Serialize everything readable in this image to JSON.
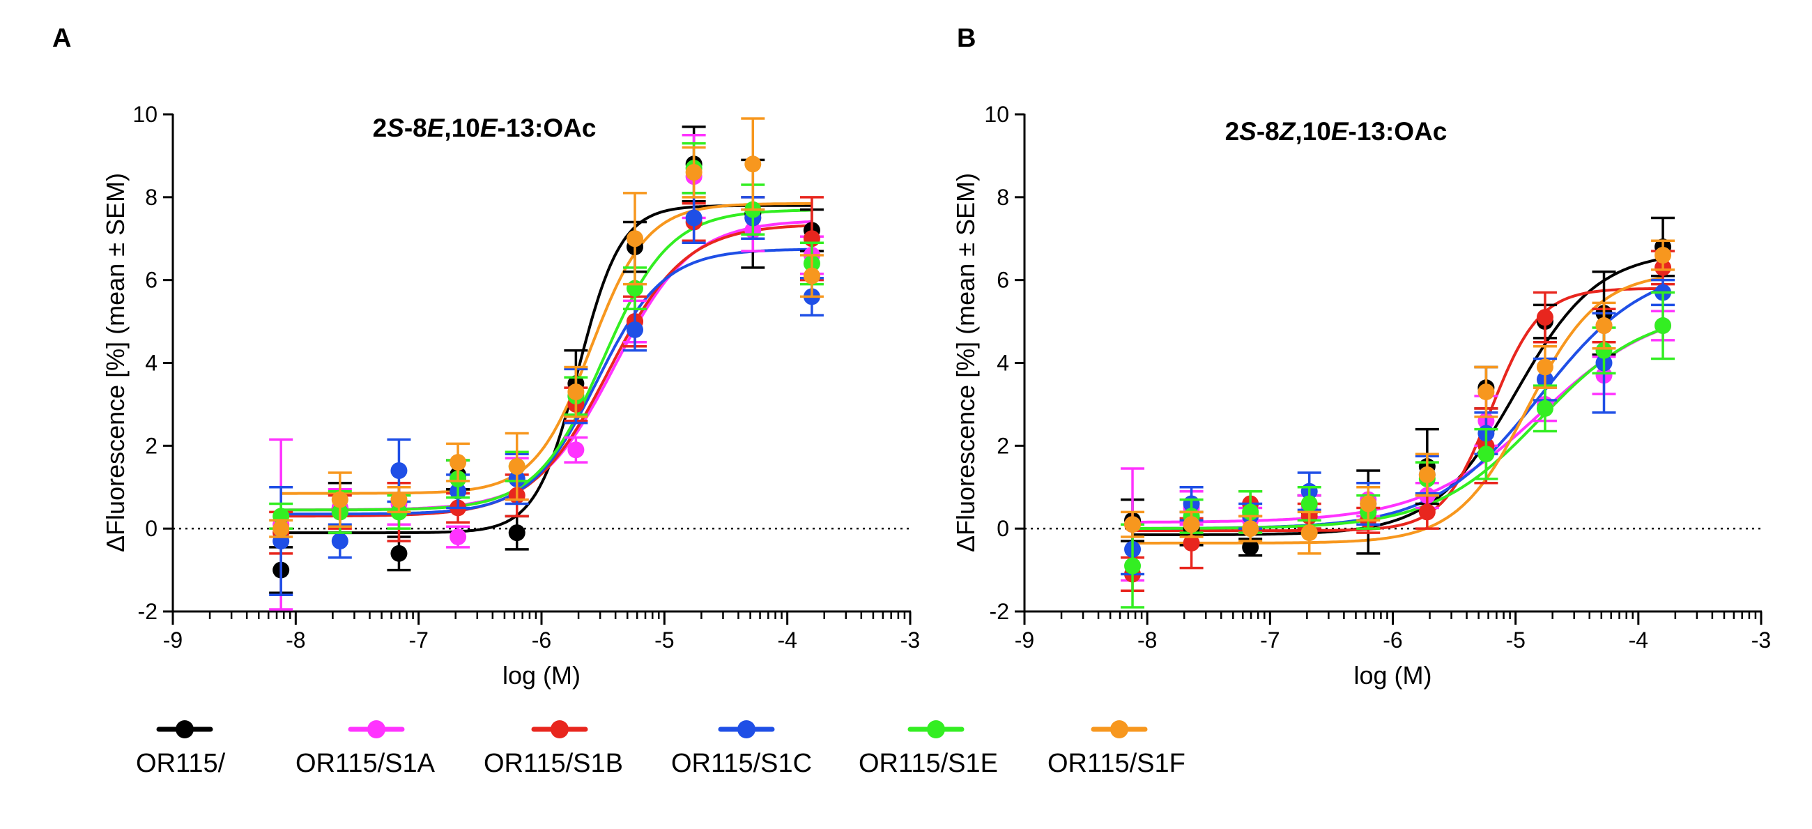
{
  "chart_data": [
    {
      "panel": "A",
      "type": "scatter",
      "title": "2S-8E,10E-13:OAc",
      "title_parts": [
        {
          "text": "2",
          "italic": false
        },
        {
          "text": "S",
          "italic": true
        },
        {
          "text": "-8",
          "italic": false
        },
        {
          "text": "E",
          "italic": true
        },
        {
          "text": ",10",
          "italic": false
        },
        {
          "text": "E",
          "italic": true
        },
        {
          "text": "-13:OAc",
          "italic": false
        }
      ],
      "xlabel": "log (M)",
      "ylabel": "ΔFluorescence [%] (mean ± SEM)",
      "xlim": [
        -9,
        -3
      ],
      "ylim": [
        -2,
        10
      ],
      "xticks": [
        -9,
        -8,
        -7,
        -6,
        -5,
        -4,
        -3
      ],
      "yticks": [
        -2,
        0,
        2,
        4,
        6,
        8,
        10
      ],
      "x": [
        -8.12,
        -7.64,
        -7.16,
        -6.68,
        -6.2,
        -5.72,
        -5.24,
        -4.76,
        -4.28,
        -3.8
      ],
      "series": [
        {
          "name": "OR115/",
          "color": "#000000",
          "values": [
            -1.0,
            0.5,
            -0.6,
            1.3,
            -0.1,
            3.5,
            6.8,
            8.8,
            7.6,
            7.2
          ],
          "errors": [
            0.55,
            0.6,
            0.4,
            0.35,
            0.4,
            0.8,
            0.6,
            0.9,
            1.3,
            0.5
          ],
          "fit": {
            "bottom": -0.1,
            "top": 7.8,
            "logEC50": -5.7,
            "hill": 2.5
          }
        },
        {
          "name": "OR115/S1A",
          "color": "#ff33ff",
          "values": [
            0.1,
            0.5,
            0.6,
            -0.2,
            1.2,
            1.9,
            5.0,
            8.5,
            7.2,
            6.6
          ],
          "errors": [
            2.05,
            0.45,
            0.5,
            0.25,
            0.5,
            0.3,
            0.5,
            1.0,
            0.5,
            0.45
          ],
          "fit": {
            "bottom": 0.45,
            "top": 7.45,
            "logEC50": -5.4,
            "hill": 1.4
          }
        },
        {
          "name": "OR115/S1B",
          "color": "#e8261e",
          "values": [
            -0.1,
            0.4,
            0.4,
            0.5,
            0.8,
            3.0,
            5.0,
            7.4,
            7.5,
            7.0
          ],
          "errors": [
            0.5,
            0.4,
            0.7,
            0.35,
            0.5,
            0.4,
            0.6,
            0.45,
            0.5,
            1.0
          ],
          "fit": {
            "bottom": 0.3,
            "top": 7.35,
            "logEC50": -5.45,
            "hill": 1.4
          }
        },
        {
          "name": "OR115/S1C",
          "color": "#1f4fe6",
          "values": [
            -0.3,
            -0.3,
            1.4,
            0.9,
            1.2,
            3.2,
            4.8,
            7.5,
            7.5,
            5.6
          ],
          "errors": [
            1.3,
            0.4,
            0.75,
            0.4,
            0.6,
            0.65,
            0.5,
            0.6,
            0.5,
            0.45
          ],
          "fit": {
            "bottom": 0.35,
            "top": 6.75,
            "logEC50": -5.55,
            "hill": 1.6
          }
        },
        {
          "name": "OR115/S1E",
          "color": "#33ee22",
          "values": [
            0.3,
            0.4,
            0.4,
            1.2,
            1.5,
            3.2,
            5.8,
            8.7,
            7.7,
            6.4
          ],
          "errors": [
            0.3,
            0.5,
            0.4,
            0.45,
            0.35,
            0.45,
            0.5,
            0.6,
            0.6,
            0.5
          ],
          "fit": {
            "bottom": 0.45,
            "top": 7.7,
            "logEC50": -5.5,
            "hill": 1.6
          }
        },
        {
          "name": "OR115/S1F",
          "color": "#f7971e",
          "values": [
            0.0,
            0.7,
            0.7,
            1.6,
            1.5,
            3.3,
            7.0,
            8.6,
            8.8,
            6.1
          ],
          "errors": [
            0.2,
            0.65,
            0.3,
            0.45,
            0.8,
            0.6,
            1.1,
            0.6,
            1.1,
            0.5
          ],
          "fit": {
            "bottom": 0.85,
            "top": 7.85,
            "logEC50": -5.6,
            "hill": 1.9
          }
        }
      ]
    },
    {
      "panel": "B",
      "type": "scatter",
      "title": "2S-8Z,10E-13:OAc",
      "title_parts": [
        {
          "text": "2",
          "italic": false
        },
        {
          "text": "S",
          "italic": true
        },
        {
          "text": "-8",
          "italic": false
        },
        {
          "text": "Z",
          "italic": true
        },
        {
          "text": ",10",
          "italic": false
        },
        {
          "text": "E",
          "italic": true
        },
        {
          "text": "-13:OAc",
          "italic": false
        }
      ],
      "xlabel": "log (M)",
      "ylabel": "ΔFluorescence [%] (mean ± SEM)",
      "xlim": [
        -9,
        -3
      ],
      "ylim": [
        -2,
        10
      ],
      "xticks": [
        -9,
        -8,
        -7,
        -6,
        -5,
        -4,
        -3
      ],
      "yticks": [
        -2,
        0,
        2,
        4,
        6,
        8,
        10
      ],
      "x": [
        -8.12,
        -7.64,
        -7.16,
        -6.68,
        -6.2,
        -5.72,
        -5.24,
        -4.76,
        -4.28,
        -3.8
      ],
      "series": [
        {
          "name": "OR115/",
          "color": "#000000",
          "values": [
            0.2,
            0.0,
            -0.45,
            0.4,
            0.4,
            1.5,
            3.4,
            5.0,
            5.2,
            6.8
          ],
          "errors": [
            0.5,
            0.4,
            0.2,
            0.4,
            1.0,
            0.9,
            0.5,
            0.4,
            1.0,
            0.7
          ],
          "fit": {
            "bottom": -0.15,
            "top": 6.7,
            "logEC50": -5.0,
            "hill": 1.3
          }
        },
        {
          "name": "OR115/S1A",
          "color": "#ff33ff",
          "values": [
            0.1,
            0.5,
            0.2,
            0.5,
            0.7,
            0.8,
            2.6,
            3.0,
            3.7,
            4.9
          ],
          "errors": [
            1.35,
            0.4,
            0.3,
            0.3,
            0.4,
            0.3,
            0.6,
            0.4,
            0.45,
            0.35
          ],
          "fit": {
            "bottom": 0.15,
            "top": 5.4,
            "logEC50": -4.8,
            "hill": 0.9
          }
        },
        {
          "name": "OR115/S1B",
          "color": "#e8261e",
          "values": [
            -1.1,
            -0.35,
            0.6,
            0.3,
            0.2,
            0.4,
            2.0,
            5.1,
            4.9,
            6.3
          ],
          "errors": [
            0.4,
            0.6,
            0.3,
            0.3,
            0.3,
            0.4,
            0.9,
            0.6,
            0.4,
            0.4
          ],
          "fit": {
            "bottom": -0.05,
            "top": 5.8,
            "logEC50": -5.2,
            "hill": 2.2
          }
        },
        {
          "name": "OR115/S1C",
          "color": "#1f4fe6",
          "values": [
            -0.5,
            0.6,
            0.3,
            0.9,
            0.6,
            1.3,
            2.3,
            3.6,
            4.0,
            5.7
          ],
          "errors": [
            0.6,
            0.4,
            0.3,
            0.45,
            0.5,
            0.45,
            0.5,
            0.5,
            1.2,
            0.3
          ],
          "fit": {
            "bottom": 0.0,
            "top": 6.4,
            "logEC50": -4.8,
            "hill": 1.0
          }
        },
        {
          "name": "OR115/S1E",
          "color": "#33ee22",
          "values": [
            -0.9,
            0.3,
            0.4,
            0.6,
            0.4,
            1.2,
            1.8,
            2.9,
            4.3,
            4.9
          ],
          "errors": [
            1.0,
            0.4,
            0.5,
            0.4,
            0.4,
            0.4,
            0.6,
            0.55,
            0.55,
            0.8
          ],
          "fit": {
            "bottom": 0.0,
            "top": 5.3,
            "logEC50": -4.8,
            "hill": 1.0
          }
        },
        {
          "name": "OR115/S1F",
          "color": "#f7971e",
          "values": [
            0.1,
            0.1,
            0.0,
            -0.1,
            0.6,
            1.3,
            3.3,
            3.9,
            4.9,
            6.6
          ],
          "errors": [
            0.3,
            0.3,
            0.3,
            0.5,
            0.4,
            0.5,
            0.6,
            0.5,
            0.55,
            0.35
          ],
          "fit": {
            "bottom": -0.35,
            "top": 6.2,
            "logEC50": -4.9,
            "hill": 1.5
          }
        }
      ]
    }
  ],
  "legend": [
    {
      "label": "OR115/",
      "color": "#000000"
    },
    {
      "label": "OR115/S1A",
      "color": "#ff33ff"
    },
    {
      "label": "OR115/S1B",
      "color": "#e8261e"
    },
    {
      "label": "OR115/S1C",
      "color": "#1f4fe6"
    },
    {
      "label": "OR115/S1E",
      "color": "#33ee22"
    },
    {
      "label": "OR115/S1F",
      "color": "#f7971e"
    }
  ]
}
